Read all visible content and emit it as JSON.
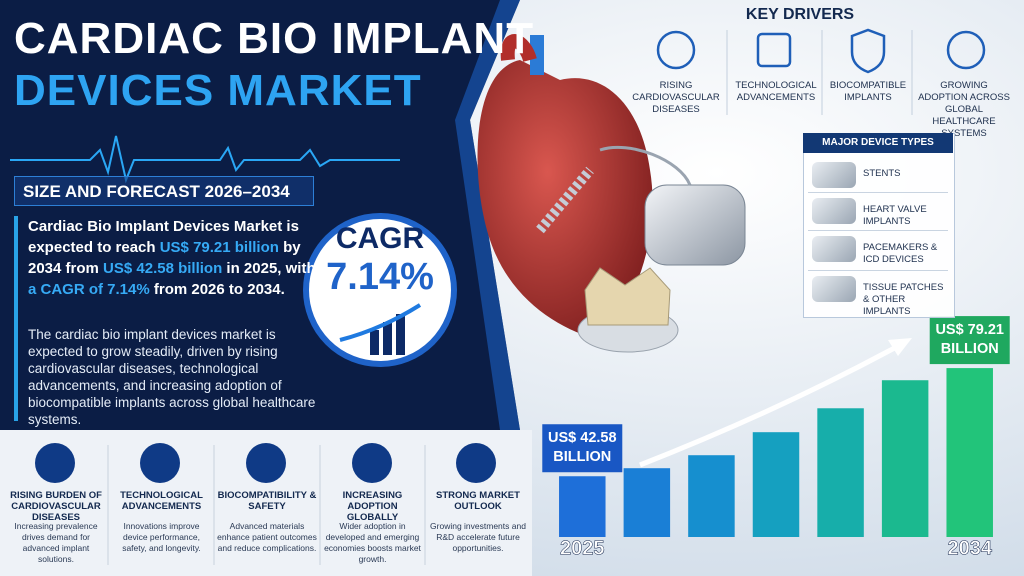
{
  "header": {
    "title_line1": "CARDIAC BIO IMPLANT",
    "title_line2": "DEVICES MARKET",
    "subtitle": "SIZE AND FORECAST 2026–2034"
  },
  "summary": {
    "segments": [
      "Cardiac Bio Implant Devices Market is expected to reach ",
      "US$ 79.21 billion",
      " by 2034 from ",
      "US$ 42.58 billion",
      " in 2025, with ",
      "a CAGR of 7.14%",
      " from 2026 to 2034."
    ],
    "body": "The cardiac bio implant devices market is expected to grow steadily, driven by rising cardiovascular diseases, technological advancements, and increasing adoption of biocompatible implants across global healthcare systems."
  },
  "cagr_badge": {
    "label": "CAGR",
    "value": "7.14%"
  },
  "key_drivers": {
    "title": "KEY DRIVERS",
    "items": [
      "RISING CARDIOVASCULAR DISEASES",
      "TECHNOLOGICAL ADVANCEMENTS",
      "BIOCOMPATIBLE IMPLANTS",
      "GROWING ADOPTION ACROSS GLOBAL HEALTHCARE SYSTEMS"
    ]
  },
  "device_types": {
    "title": "MAJOR DEVICE TYPES",
    "items": [
      "STENTS",
      "HEART VALVE IMPLANTS",
      "PACEMAKERS & ICD DEVICES",
      "TISSUE PATCHES & OTHER IMPLANTS"
    ]
  },
  "highlights": [
    {
      "title": "RISING BURDEN OF CARDIOVASCULAR DISEASES",
      "text": "Increasing prevalence drives demand for advanced implant solutions."
    },
    {
      "title": "TECHNOLOGICAL ADVANCEMENTS",
      "text": "Innovations improve device performance, safety, and longevity."
    },
    {
      "title": "BIOCOMPATIBILITY & SAFETY",
      "text": "Advanced materials enhance patient outcomes and reduce complications."
    },
    {
      "title": "INCREASING ADOPTION GLOBALLY",
      "text": "Wider adoption in developed and emerging economies boosts market growth."
    },
    {
      "title": "STRONG MARKET OUTLOOK",
      "text": "Growing investments and R&D accelerate future opportunities."
    }
  ],
  "chart_data": {
    "type": "bar",
    "categories": [
      "2025",
      null,
      null,
      null,
      null,
      null,
      "2034"
    ],
    "values": [
      42.58,
      45.3,
      49.7,
      57.5,
      65.6,
      75.1,
      79.21
    ],
    "value_labels": [
      "US$ 42.58 BILLION",
      null,
      null,
      null,
      null,
      null,
      "US$ 79.21 BILLION"
    ],
    "colors": [
      "#1e6fd9",
      "#1a7fd6",
      "#168fcf",
      "#15a0c0",
      "#17aeaa",
      "#1bb98f",
      "#22c47a"
    ],
    "ylim": [
      22,
      85
    ]
  }
}
